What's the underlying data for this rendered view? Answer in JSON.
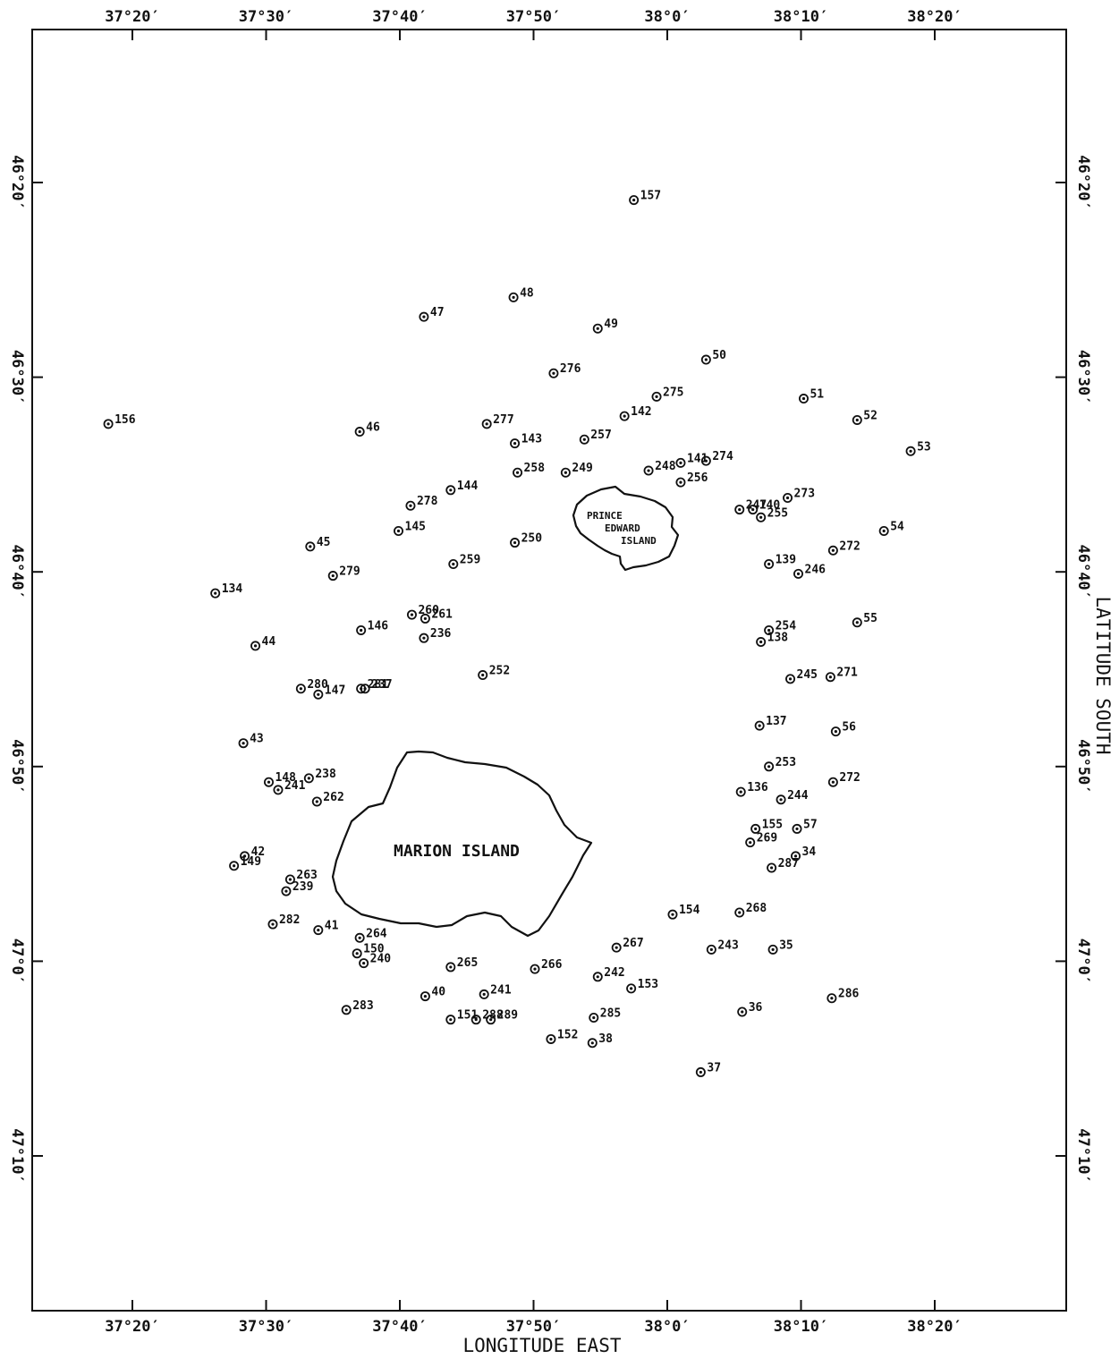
{
  "map": {
    "x_axis_title": "LONGITUDE EAST",
    "y_axis_title": "LATITUDE SOUTH",
    "lon_ticks": [
      "37°20′",
      "37°30′",
      "37°40′",
      "37°50′",
      "38°0′",
      "38°10′",
      "38°20′"
    ],
    "lat_ticks": [
      "46°20′",
      "46°30′",
      "46°40′",
      "46°50′",
      "47°0′",
      "47°10′"
    ],
    "islands": [
      {
        "id": "prince-edward",
        "name_lines": [
          "PRINCE",
          "EDWARD",
          "ISLAND"
        ]
      },
      {
        "id": "marion",
        "name_lines": [
          "MARION ISLAND"
        ]
      }
    ],
    "stations": [
      {
        "id": "157",
        "lon_min": 57.5,
        "lat_min": 20.9
      },
      {
        "id": "48",
        "lon_min": 48.5,
        "lat_min": 25.9
      },
      {
        "id": "47",
        "lon_min": 41.8,
        "lat_min": 26.9
      },
      {
        "id": "49",
        "lon_min": 54.8,
        "lat_min": 27.5
      },
      {
        "id": "50",
        "lon_min": 62.9,
        "lat_min": 29.1
      },
      {
        "id": "276",
        "lon_min": 51.5,
        "lat_min": 29.8
      },
      {
        "id": "51",
        "lon_min": 70.2,
        "lat_min": 31.1
      },
      {
        "id": "275",
        "lon_min": 59.2,
        "lat_min": 31.0
      },
      {
        "id": "156",
        "lon_min": 18.2,
        "lat_min": 32.4
      },
      {
        "id": "52",
        "lon_min": 74.2,
        "lat_min": 32.2
      },
      {
        "id": "142",
        "lon_min": 56.8,
        "lat_min": 32.0
      },
      {
        "id": "277",
        "lon_min": 46.5,
        "lat_min": 32.4
      },
      {
        "id": "46",
        "lon_min": 37.0,
        "lat_min": 32.8
      },
      {
        "id": "143",
        "lon_min": 48.6,
        "lat_min": 33.4
      },
      {
        "id": "257",
        "lon_min": 53.8,
        "lat_min": 33.2
      },
      {
        "id": "53",
        "lon_min": 78.2,
        "lat_min": 33.8
      },
      {
        "id": "141",
        "lon_min": 61.0,
        "lat_min": 34.4
      },
      {
        "id": "274",
        "lon_min": 62.9,
        "lat_min": 34.3
      },
      {
        "id": "258",
        "lon_min": 48.8,
        "lat_min": 34.9
      },
      {
        "id": "249",
        "lon_min": 52.4,
        "lat_min": 34.9
      },
      {
        "id": "248",
        "lon_min": 58.6,
        "lat_min": 34.8
      },
      {
        "id": "256",
        "lon_min": 61.0,
        "lat_min": 35.4
      },
      {
        "id": "144",
        "lon_min": 43.8,
        "lat_min": 35.8
      },
      {
        "id": "273",
        "lon_min": 69.0,
        "lat_min": 36.2
      },
      {
        "id": "278",
        "lon_min": 40.8,
        "lat_min": 36.6
      },
      {
        "id": "247",
        "lon_min": 65.4,
        "lat_min": 36.8
      },
      {
        "id": "140",
        "lon_min": 66.4,
        "lat_min": 36.8
      },
      {
        "id": "255",
        "lon_min": 67.0,
        "lat_min": 37.2
      },
      {
        "id": "145",
        "lon_min": 39.9,
        "lat_min": 37.9
      },
      {
        "id": "54",
        "lon_min": 76.2,
        "lat_min": 37.9
      },
      {
        "id": "250",
        "lon_min": 48.6,
        "lat_min": 38.5
      },
      {
        "id": "45",
        "lon_min": 33.3,
        "lat_min": 38.7
      },
      {
        "id": "272",
        "lon_min": 72.4,
        "lat_min": 38.9
      },
      {
        "id": "139",
        "lon_min": 67.6,
        "lat_min": 39.6
      },
      {
        "id": "259",
        "lon_min": 44.0,
        "lat_min": 39.6
      },
      {
        "id": "246",
        "lon_min": 69.8,
        "lat_min": 40.1
      },
      {
        "id": "279",
        "lon_min": 35.0,
        "lat_min": 40.2
      },
      {
        "id": "134",
        "lon_min": 26.2,
        "lat_min": 41.1
      },
      {
        "id": "260",
        "lon_min": 40.9,
        "lat_min": 42.2
      },
      {
        "id": "261",
        "lon_min": 41.9,
        "lat_min": 42.4
      },
      {
        "id": "55",
        "lon_min": 74.2,
        "lat_min": 42.6
      },
      {
        "id": "146",
        "lon_min": 37.1,
        "lat_min": 43.0
      },
      {
        "id": "254",
        "lon_min": 67.6,
        "lat_min": 43.0
      },
      {
        "id": "236",
        "lon_min": 41.8,
        "lat_min": 43.4
      },
      {
        "id": "138",
        "lon_min": 67.0,
        "lat_min": 43.6
      },
      {
        "id": "44",
        "lon_min": 29.2,
        "lat_min": 43.8
      },
      {
        "id": "252",
        "lon_min": 46.2,
        "lat_min": 45.3
      },
      {
        "id": "245",
        "lon_min": 69.2,
        "lat_min": 45.5
      },
      {
        "id": "271",
        "lon_min": 72.2,
        "lat_min": 45.4
      },
      {
        "id": "280",
        "lon_min": 32.6,
        "lat_min": 46.0
      },
      {
        "id": "147",
        "lon_min": 33.9,
        "lat_min": 46.3
      },
      {
        "id": "281",
        "lon_min": 37.1,
        "lat_min": 46.0
      },
      {
        "id": "237",
        "lon_min": 37.4,
        "lat_min": 46.0
      },
      {
        "id": "137",
        "lon_min": 66.9,
        "lat_min": 47.9
      },
      {
        "id": "56",
        "lon_min": 72.6,
        "lat_min": 48.2
      },
      {
        "id": "43",
        "lon_min": 28.3,
        "lat_min": 48.8
      },
      {
        "id": "253",
        "lon_min": 67.6,
        "lat_min": 50.0
      },
      {
        "id": "148",
        "lon_min": 30.2,
        "lat_min": 50.8
      },
      {
        "id": "238",
        "lon_min": 33.2,
        "lat_min": 50.6
      },
      {
        "id": "272",
        "lon_min": 72.4,
        "lat_min": 50.8
      },
      {
        "id": "241",
        "lon_min": 30.9,
        "lat_min": 51.2
      },
      {
        "id": "136",
        "lon_min": 65.5,
        "lat_min": 51.3
      },
      {
        "id": "244",
        "lon_min": 68.5,
        "lat_min": 51.7
      },
      {
        "id": "262",
        "lon_min": 33.8,
        "lat_min": 51.8
      },
      {
        "id": "155",
        "lon_min": 66.6,
        "lat_min": 53.2
      },
      {
        "id": "57",
        "lon_min": 69.7,
        "lat_min": 53.2
      },
      {
        "id": "269",
        "lon_min": 66.2,
        "lat_min": 53.9
      },
      {
        "id": "42",
        "lon_min": 28.4,
        "lat_min": 54.6
      },
      {
        "id": "34",
        "lon_min": 69.6,
        "lat_min": 54.6
      },
      {
        "id": "149",
        "lon_min": 27.6,
        "lat_min": 55.1
      },
      {
        "id": "287",
        "lon_min": 67.8,
        "lat_min": 55.2
      },
      {
        "id": "263",
        "lon_min": 31.8,
        "lat_min": 55.8
      },
      {
        "id": "239",
        "lon_min": 31.5,
        "lat_min": 56.4
      },
      {
        "id": "154",
        "lon_min": 60.4,
        "lat_min": 57.6
      },
      {
        "id": "268",
        "lon_min": 65.4,
        "lat_min": 57.5
      },
      {
        "id": "282",
        "lon_min": 30.5,
        "lat_min": 58.1
      },
      {
        "id": "41",
        "lon_min": 33.9,
        "lat_min": 58.4
      },
      {
        "id": "264",
        "lon_min": 37.0,
        "lat_min": 58.8
      },
      {
        "id": "267",
        "lon_min": 56.2,
        "lat_min": 59.3
      },
      {
        "id": "243",
        "lon_min": 63.3,
        "lat_min": 59.4
      },
      {
        "id": "35",
        "lon_min": 67.9,
        "lat_min": 59.4
      },
      {
        "id": "150",
        "lon_min": 36.8,
        "lat_min": 59.6
      },
      {
        "id": "240",
        "lon_min": 37.3,
        "lat_min": 60.1
      },
      {
        "id": "265",
        "lon_min": 43.8,
        "lat_min": 60.3
      },
      {
        "id": "266",
        "lon_min": 50.1,
        "lat_min": 60.4
      },
      {
        "id": "242",
        "lon_min": 54.8,
        "lat_min": 60.8
      },
      {
        "id": "153",
        "lon_min": 57.3,
        "lat_min": 61.4
      },
      {
        "id": "40",
        "lon_min": 41.9,
        "lat_min": 61.8
      },
      {
        "id": "241",
        "lon_min": 46.3,
        "lat_min": 61.7
      },
      {
        "id": "286",
        "lon_min": 72.3,
        "lat_min": 61.9
      },
      {
        "id": "283",
        "lon_min": 36.0,
        "lat_min": 62.5
      },
      {
        "id": "36",
        "lon_min": 65.6,
        "lat_min": 62.6
      },
      {
        "id": "151",
        "lon_min": 43.8,
        "lat_min": 63.0
      },
      {
        "id": "288",
        "lon_min": 45.7,
        "lat_min": 63.0
      },
      {
        "id": "289",
        "lon_min": 46.8,
        "lat_min": 63.0
      },
      {
        "id": "285",
        "lon_min": 54.5,
        "lat_min": 62.9
      },
      {
        "id": "152",
        "lon_min": 51.3,
        "lat_min": 64.0
      },
      {
        "id": "38",
        "lon_min": 54.4,
        "lat_min": 64.2
      },
      {
        "id": "37",
        "lon_min": 62.5,
        "lat_min": 65.7
      }
    ]
  }
}
